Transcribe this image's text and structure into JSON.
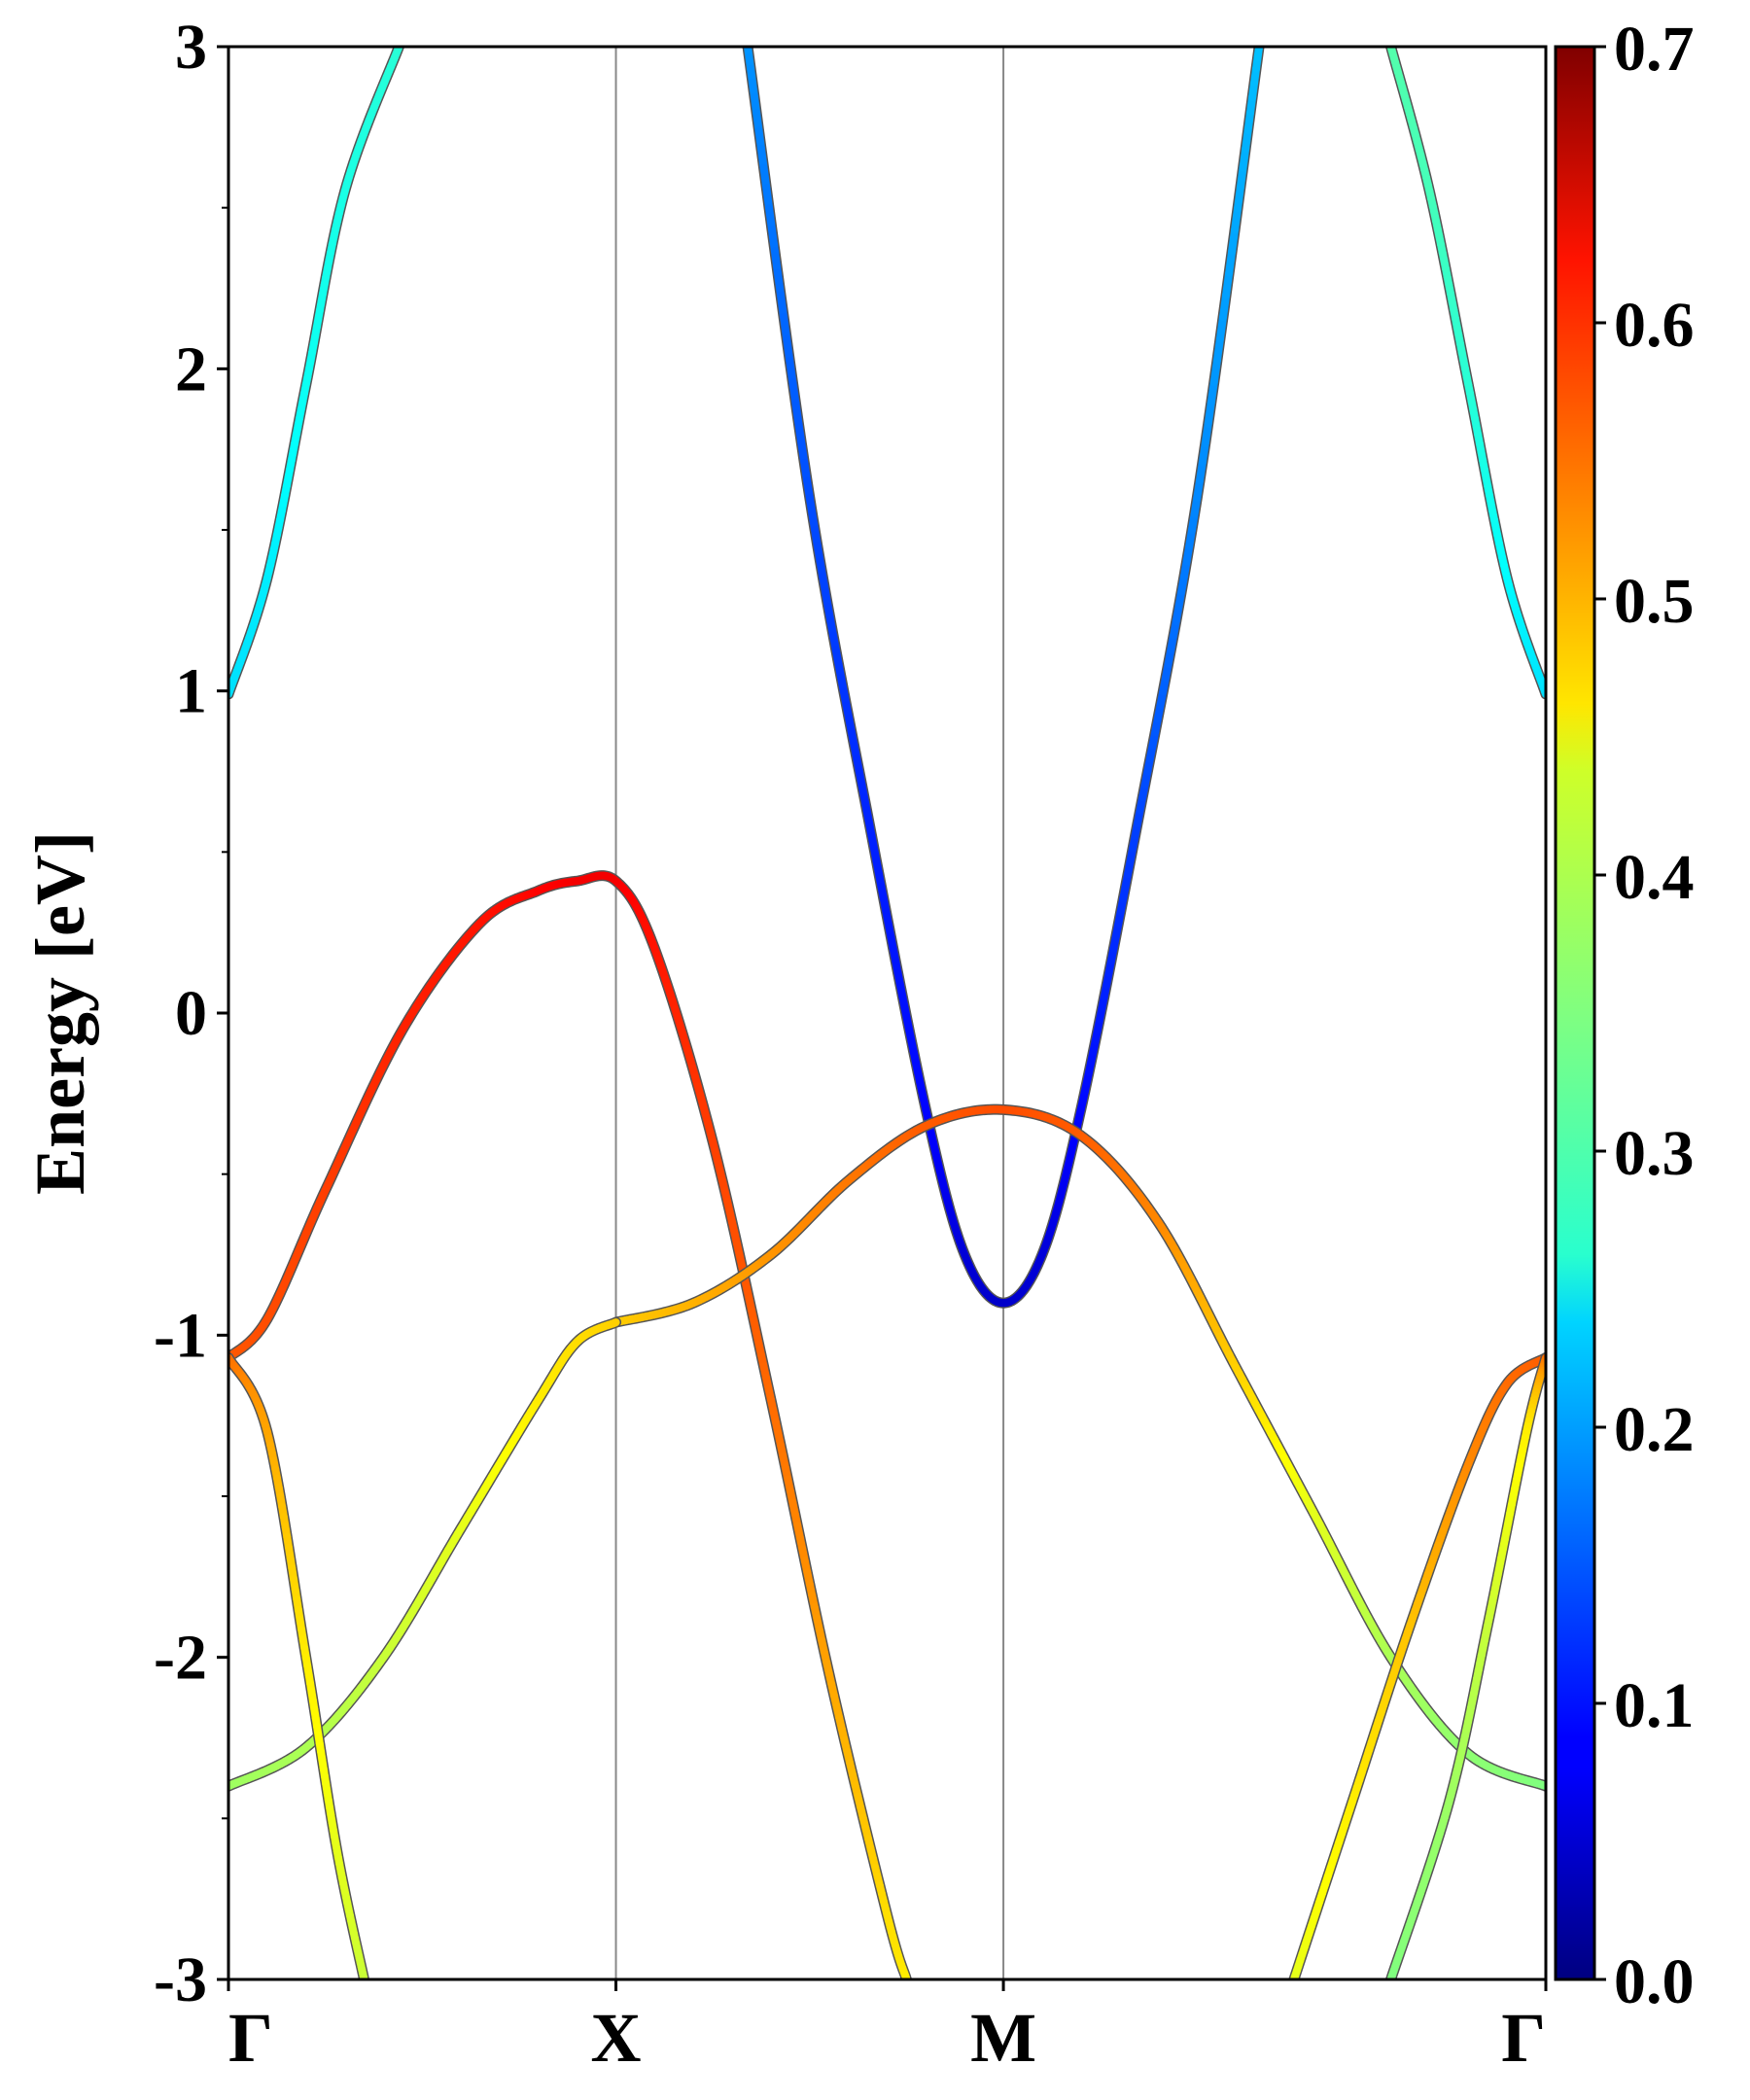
{
  "chart_data": {
    "type": "line",
    "chart_kind": "electronic band structure",
    "ylabel": "Energy [eV]",
    "ylim": [
      -3,
      3
    ],
    "y_ticks": [
      "3",
      "2",
      "1",
      "0",
      "-1",
      "-2",
      "-3"
    ],
    "y_ticks_values": [
      3,
      2,
      1,
      0,
      -1,
      -2,
      -3
    ],
    "minor_y_ticks": true,
    "x_ticks": [
      "Γ",
      "X",
      "M",
      "Γ"
    ],
    "x_ticks_positions": [
      0,
      1,
      2,
      3.4
    ],
    "xlim": [
      0,
      3.4
    ],
    "high_symmetry_lines": true,
    "colormap": "jet",
    "colorbar": {
      "range": [
        0,
        0.7
      ],
      "ticks": [
        "0.0",
        "0.1",
        "0.2",
        "0.3",
        "0.4",
        "0.5",
        "0.6",
        "0.7"
      ],
      "tick_values": [
        0,
        0.1,
        0.2,
        0.3,
        0.4,
        0.5,
        0.6,
        0.7
      ]
    },
    "series": [
      {
        "id": "band-conduction-gamma-left",
        "points": [
          [
            0,
            0.99,
            0.24
          ],
          [
            0.1,
            1.35,
            0.25
          ],
          [
            0.2,
            1.95,
            0.27
          ],
          [
            0.3,
            2.55,
            0.28
          ],
          [
            0.44,
            3.0,
            0.29
          ]
        ]
      },
      {
        "id": "band-conduction-gamma-right",
        "points": [
          [
            3.4,
            0.99,
            0.24
          ],
          [
            3.3,
            1.35,
            0.26
          ],
          [
            3.2,
            1.95,
            0.29
          ],
          [
            3.1,
            2.55,
            0.31
          ],
          [
            3.0,
            3.0,
            0.32
          ]
        ]
      },
      {
        "id": "band-conduction-m",
        "points": [
          [
            1.34,
            3.0,
            0.19
          ],
          [
            1.5,
            1.6,
            0.14
          ],
          [
            1.66,
            0.55,
            0.11
          ],
          [
            1.8,
            -0.3,
            0.09
          ],
          [
            1.9,
            -0.75,
            0.06
          ],
          [
            2.0,
            -0.9,
            0.05
          ],
          [
            2.1,
            -0.75,
            0.06
          ],
          [
            2.2,
            -0.3,
            0.09
          ],
          [
            2.34,
            0.55,
            0.13
          ],
          [
            2.5,
            1.6,
            0.18
          ],
          [
            2.66,
            3.0,
            0.22
          ]
        ]
      },
      {
        "id": "band-valence-gx-top",
        "points": [
          [
            0,
            -1.07,
            0.55
          ],
          [
            0.1,
            -0.95,
            0.56
          ],
          [
            0.25,
            -0.55,
            0.57
          ],
          [
            0.45,
            -0.05,
            0.59
          ],
          [
            0.65,
            0.28,
            0.6
          ],
          [
            0.8,
            0.38,
            0.61
          ],
          [
            0.9,
            0.41,
            0.62
          ],
          [
            1.0,
            0.41,
            0.62
          ],
          [
            1.1,
            0.2,
            0.6
          ],
          [
            1.25,
            -0.4,
            0.57
          ],
          [
            1.4,
            -1.2,
            0.54
          ],
          [
            1.55,
            -2.05,
            0.5
          ],
          [
            1.7,
            -2.8,
            0.46
          ],
          [
            1.75,
            -3.0,
            0.45
          ]
        ]
      },
      {
        "id": "band-valence-xm-upper",
        "points": [
          [
            1.0,
            -0.96,
            0.47
          ],
          [
            1.2,
            -0.9,
            0.49
          ],
          [
            1.4,
            -0.75,
            0.51
          ],
          [
            1.6,
            -0.52,
            0.53
          ],
          [
            1.8,
            -0.35,
            0.55
          ],
          [
            2.0,
            -0.3,
            0.56
          ],
          [
            2.2,
            -0.38,
            0.55
          ],
          [
            2.4,
            -0.65,
            0.52
          ],
          [
            2.6,
            -1.1,
            0.47
          ],
          [
            2.8,
            -1.55,
            0.42
          ],
          [
            3.0,
            -2.0,
            0.38
          ],
          [
            3.2,
            -2.3,
            0.36
          ],
          [
            3.4,
            -2.4,
            0.35
          ]
        ]
      },
      {
        "id": "band-valence-gx-lower",
        "points": [
          [
            0,
            -2.4,
            0.37
          ],
          [
            0.2,
            -2.28,
            0.38
          ],
          [
            0.4,
            -2.0,
            0.4
          ],
          [
            0.6,
            -1.6,
            0.42
          ],
          [
            0.8,
            -1.2,
            0.45
          ],
          [
            0.9,
            -1.02,
            0.46
          ],
          [
            1.0,
            -0.96,
            0.47
          ]
        ]
      },
      {
        "id": "band-valence-gamma-left-steep",
        "points": [
          [
            0,
            -1.07,
            0.54
          ],
          [
            0.1,
            -1.3,
            0.5
          ],
          [
            0.2,
            -2.0,
            0.45
          ],
          [
            0.28,
            -2.6,
            0.42
          ],
          [
            0.35,
            -3.0,
            0.4
          ]
        ]
      },
      {
        "id": "band-valence-mg-orange",
        "points": [
          [
            3.4,
            -1.07,
            0.55
          ],
          [
            3.3,
            -1.15,
            0.54
          ],
          [
            3.2,
            -1.4,
            0.52
          ],
          [
            3.05,
            -1.9,
            0.48
          ],
          [
            2.9,
            -2.45,
            0.45
          ],
          [
            2.75,
            -3.0,
            0.42
          ]
        ]
      },
      {
        "id": "band-valence-mg-green",
        "points": [
          [
            3.4,
            -1.07,
            0.54
          ],
          [
            3.35,
            -1.3,
            0.45
          ],
          [
            3.25,
            -1.9,
            0.4
          ],
          [
            3.15,
            -2.45,
            0.37
          ],
          [
            3.0,
            -3.0,
            0.35
          ]
        ]
      }
    ]
  }
}
